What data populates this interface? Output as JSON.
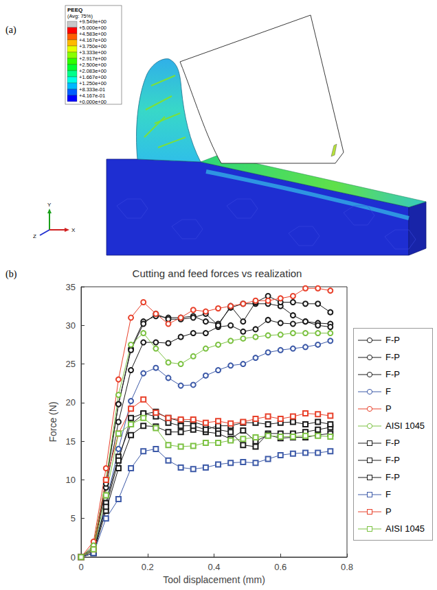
{
  "panel_a": {
    "label": "(a)",
    "contour_legend": {
      "title": "PEEQ",
      "subtitle": "(Avg: 75%)",
      "ticks": [
        {
          "value": 9.549,
          "label": "+9.549e+00"
        },
        {
          "value": 5.0,
          "label": "+5.000e+00"
        },
        {
          "value": 4.583,
          "label": "+4.583e+00"
        },
        {
          "value": 4.167,
          "label": "+4.167e+00"
        },
        {
          "value": 3.75,
          "label": "+3.750e+00"
        },
        {
          "value": 3.333,
          "label": "+3.333e+00"
        },
        {
          "value": 2.917,
          "label": "+2.917e+00"
        },
        {
          "value": 2.5,
          "label": "+2.500e+00"
        },
        {
          "value": 2.083,
          "label": "+2.083e+00"
        },
        {
          "value": 1.667,
          "label": "+1.667e+00"
        },
        {
          "value": 1.25,
          "label": "+1.250e+00"
        },
        {
          "value": 0.8333,
          "label": "+8.333e-01"
        },
        {
          "value": 0.4167,
          "label": "+4.167e-01"
        },
        {
          "value": 0.0,
          "label": "+0.000e+00"
        }
      ]
    },
    "triad": {
      "x": "X",
      "y": "Y",
      "z": "Z"
    }
  },
  "chart_data": {
    "type": "line",
    "panel": "(b)",
    "title": "Cutting and feed forces vs realization",
    "x_label": "Tool displacement (mm)",
    "y_label": "Force (N)",
    "x": [
      0,
      0.0375,
      0.075,
      0.1125,
      0.15,
      0.1875,
      0.225,
      0.2625,
      0.3,
      0.3375,
      0.375,
      0.4125,
      0.45,
      0.4875,
      0.525,
      0.5625,
      0.6,
      0.6375,
      0.675,
      0.7125,
      0.75
    ],
    "xlim": [
      0,
      0.8
    ],
    "xticks": [
      0,
      0.2,
      0.4,
      0.6,
      0.8
    ],
    "ylim": [
      0,
      35
    ],
    "yticks": [
      0,
      5,
      10,
      15,
      20,
      25,
      30,
      35
    ],
    "grid": false,
    "legend": "right",
    "series": [
      {
        "name": "F-P",
        "color": "#1a1a1a",
        "marker": "circle",
        "values": [
          0,
          1.5,
          10,
          19.8,
          27,
          30.5,
          31.2,
          31,
          31,
          31.2,
          30.5,
          30.2,
          32.3,
          32.8,
          32.8,
          32.8,
          32.5,
          31.3,
          30.5,
          30.3,
          30.2
        ]
      },
      {
        "name": "F-P",
        "color": "#1a1a1a",
        "marker": "circle",
        "values": [
          0,
          1,
          9,
          17.5,
          24.2,
          27.8,
          27.8,
          27.7,
          28.5,
          29,
          29,
          29.8,
          30,
          29.2,
          29.5,
          30.7,
          30.3,
          30.2,
          30.5,
          30,
          29.8
        ]
      },
      {
        "name": "F-P",
        "color": "#1a1a1a",
        "marker": "circle",
        "values": [
          0,
          1.2,
          9.5,
          19.8,
          26.8,
          30.2,
          31.5,
          30.8,
          30.8,
          31,
          31.5,
          30,
          32.5,
          30.5,
          33,
          33.8,
          33,
          33,
          32.8,
          32.8,
          31.7
        ]
      },
      {
        "name": "F",
        "color": "#3d5aa8",
        "marker": "circle",
        "values": [
          0,
          1,
          7,
          14,
          20.2,
          23.8,
          24.5,
          23.2,
          22.2,
          22.3,
          23.5,
          24.2,
          24.8,
          25,
          25.8,
          26.5,
          26.8,
          27,
          27.2,
          27.5,
          28
        ]
      },
      {
        "name": "P",
        "color": "#e8402a",
        "marker": "circle",
        "values": [
          0,
          2,
          11.5,
          23,
          31,
          33,
          31.5,
          30.2,
          31,
          32,
          31.8,
          32.2,
          32.5,
          32.8,
          33.2,
          33.2,
          33.5,
          33.8,
          34.8,
          34.8,
          34.5
        ]
      },
      {
        "name": "AISI 1045",
        "color": "#7cc242",
        "marker": "circle",
        "values": [
          0,
          1.5,
          10,
          21,
          27.5,
          29,
          27,
          25.2,
          25,
          26,
          27,
          27.5,
          28,
          28.3,
          28.5,
          28.7,
          28.8,
          29,
          29,
          29,
          29
        ]
      },
      {
        "name": "F-P",
        "color": "#1a1a1a",
        "marker": "square",
        "values": [
          0,
          0.5,
          7,
          13,
          17.2,
          18.5,
          18.8,
          18,
          17.6,
          17.5,
          17,
          16.5,
          16.2,
          14.5,
          14.3,
          16,
          16,
          16,
          16.2,
          16.5,
          16.8
        ]
      },
      {
        "name": "F-P",
        "color": "#1a1a1a",
        "marker": "square",
        "values": [
          0,
          0.5,
          6,
          11.5,
          15.8,
          17,
          16.9,
          16.2,
          16.2,
          16.5,
          16.2,
          16,
          15.3,
          16.4,
          15,
          15.8,
          15.4,
          15.5,
          15.5,
          15.8,
          16
        ]
      },
      {
        "name": "F-P",
        "color": "#1a1a1a",
        "marker": "square",
        "values": [
          0,
          0.8,
          6.5,
          12.5,
          18,
          18.6,
          18.2,
          17.4,
          17,
          17,
          16.5,
          17,
          17,
          17.4,
          17.4,
          17.2,
          17.4,
          17.5,
          17.2,
          17.5,
          17.2
        ]
      },
      {
        "name": "F",
        "color": "#3d5aa8",
        "marker": "square",
        "values": [
          0,
          0.5,
          5,
          7.5,
          11.5,
          13.7,
          14,
          12.5,
          11.6,
          11.4,
          11.6,
          12,
          12.2,
          12.3,
          12.2,
          12.7,
          13.2,
          13.4,
          13.5,
          13.5,
          13.7
        ]
      },
      {
        "name": "P",
        "color": "#e8402a",
        "marker": "square",
        "values": [
          0,
          1,
          10,
          16,
          19.2,
          20.4,
          18.7,
          18,
          17.8,
          17.8,
          17.4,
          17.6,
          17.3,
          17.5,
          17.9,
          18.2,
          17.9,
          18.2,
          18.6,
          18.5,
          18.3
        ]
      },
      {
        "name": "AISI 1045",
        "color": "#7cc242",
        "marker": "square",
        "values": [
          0,
          1,
          8,
          16,
          17.2,
          18,
          16.7,
          14.5,
          14.3,
          14.4,
          14.8,
          14.8,
          15.1,
          15.3,
          15.5,
          15.7,
          15.6,
          15.6,
          15.7,
          15.7,
          15.6
        ]
      }
    ]
  }
}
